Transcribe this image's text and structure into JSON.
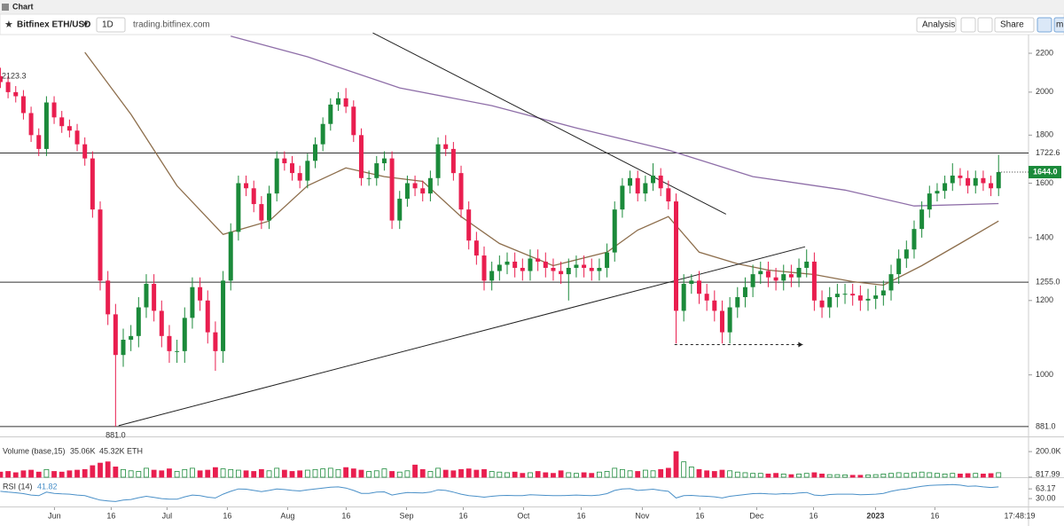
{
  "header": {
    "title": "Chart"
  },
  "toolbar": {
    "symbol": "Bitfinex ETH/USD",
    "interval": "1D",
    "source": "trading.bitfinex.com",
    "analysis": "Analysis",
    "share": "Share",
    "more": "m"
  },
  "time_label": "17:48:19",
  "chart_data": [
    {
      "type": "candlestick",
      "log": true,
      "up_color": "#1b8a3a",
      "down_color": "#e91e4f",
      "ylim": [
        860,
        2303
      ],
      "yticks": [
        1000,
        1200,
        1400,
        1600,
        1800,
        2000,
        2200
      ],
      "xlim": [
        -0.05,
        133.9
      ],
      "xticks": [
        {
          "value": 7.04,
          "label": "Jun"
        },
        {
          "value": 14.43,
          "label": "16"
        },
        {
          "value": 21.7,
          "label": "Jul"
        },
        {
          "value": 29.56,
          "label": "16"
        },
        {
          "value": 37.41,
          "label": "Aug"
        },
        {
          "value": 45.03,
          "label": "16"
        },
        {
          "value": 52.89,
          "label": "Sep"
        },
        {
          "value": 60.28,
          "label": "16"
        },
        {
          "value": 68.13,
          "label": "Oct"
        },
        {
          "value": 75.64,
          "label": "16"
        },
        {
          "value": 83.6,
          "label": "Nov"
        },
        {
          "value": 91.1,
          "label": "16"
        },
        {
          "value": 98.5,
          "label": "Dec"
        },
        {
          "value": 105.9,
          "label": "16"
        },
        {
          "value": 113.97,
          "label": "2023"
        },
        {
          "value": 121.7,
          "label": "16"
        }
      ],
      "open": [
        2080,
        2050,
        2000,
        1980,
        1900,
        1800,
        1740,
        1950,
        1880,
        1840,
        1820,
        1760,
        1700,
        1500,
        1260,
        1160,
        1050,
        1090,
        1100,
        1180,
        1250,
        1170,
        1100,
        1060,
        1060,
        1150,
        1240,
        1200,
        1110,
        1060,
        1260,
        1420,
        1600,
        1580,
        1520,
        1460,
        1560,
        1700,
        1680,
        1640,
        1610,
        1690,
        1760,
        1850,
        1940,
        1970,
        1930,
        1800,
        1620,
        1620,
        1680,
        1700,
        1460,
        1540,
        1600,
        1580,
        1560,
        1620,
        1760,
        1740,
        1640,
        1500,
        1390,
        1340,
        1260,
        1290,
        1310,
        1320,
        1300,
        1290,
        1330,
        1320,
        1300,
        1290,
        1280,
        1300,
        1310,
        1300,
        1290,
        1300,
        1350,
        1500,
        1590,
        1620,
        1560,
        1600,
        1630,
        1580,
        1530,
        1170,
        1250,
        1260,
        1220,
        1200,
        1170,
        1110,
        1180,
        1210,
        1240,
        1280,
        1290,
        1270,
        1260,
        1280,
        1270,
        1300,
        1320,
        1200,
        1180,
        1210,
        1220,
        1220,
        1215,
        1200,
        1205,
        1215,
        1230,
        1280,
        1330,
        1360,
        1430,
        1500,
        1560,
        1570,
        1600,
        1630,
        1620,
        1590,
        1620,
        1600,
        1580
      ],
      "high": [
        2123.3,
        2080,
        2030,
        2010,
        1930,
        1830,
        1980,
        1980,
        1910,
        1870,
        1850,
        1790,
        1730,
        1530,
        1290,
        1190,
        1120,
        1130,
        1210,
        1280,
        1280,
        1200,
        1130,
        1090,
        1180,
        1270,
        1270,
        1230,
        1140,
        1290,
        1450,
        1630,
        1630,
        1610,
        1550,
        1590,
        1730,
        1730,
        1710,
        1670,
        1720,
        1790,
        1880,
        1970,
        2000,
        2020,
        1960,
        1830,
        1650,
        1710,
        1730,
        1730,
        1570,
        1630,
        1630,
        1610,
        1650,
        1790,
        1800,
        1770,
        1670,
        1530,
        1420,
        1370,
        1320,
        1340,
        1350,
        1350,
        1330,
        1360,
        1360,
        1350,
        1330,
        1320,
        1330,
        1340,
        1340,
        1330,
        1330,
        1380,
        1530,
        1620,
        1650,
        1650,
        1630,
        1680,
        1660,
        1610,
        1560,
        1280,
        1280,
        1290,
        1250,
        1230,
        1200,
        1210,
        1240,
        1270,
        1310,
        1320,
        1320,
        1300,
        1310,
        1310,
        1330,
        1360,
        1350,
        1230,
        1240,
        1250,
        1250,
        1250,
        1245,
        1235,
        1245,
        1260,
        1310,
        1360,
        1390,
        1460,
        1530,
        1590,
        1600,
        1630,
        1680,
        1660,
        1650,
        1650,
        1650,
        1630,
        1715
      ],
      "low": [
        2020,
        1970,
        1950,
        1870,
        1770,
        1710,
        1710,
        1850,
        1810,
        1790,
        1730,
        1670,
        1470,
        1230,
        1130,
        881,
        1020,
        1060,
        1070,
        1150,
        1140,
        1070,
        1030,
        1030,
        1030,
        1120,
        1170,
        1080,
        1010,
        1030,
        1230,
        1390,
        1550,
        1490,
        1430,
        1430,
        1530,
        1650,
        1610,
        1580,
        1580,
        1660,
        1730,
        1820,
        1910,
        1900,
        1770,
        1590,
        1590,
        1590,
        1650,
        1430,
        1430,
        1510,
        1550,
        1530,
        1530,
        1590,
        1710,
        1610,
        1470,
        1360,
        1310,
        1230,
        1230,
        1260,
        1280,
        1270,
        1260,
        1260,
        1290,
        1270,
        1260,
        1250,
        1200,
        1270,
        1270,
        1260,
        1260,
        1270,
        1320,
        1470,
        1560,
        1530,
        1530,
        1570,
        1550,
        1500,
        1080,
        1140,
        1220,
        1190,
        1170,
        1140,
        1080,
        1080,
        1150,
        1180,
        1210,
        1250,
        1240,
        1230,
        1230,
        1240,
        1240,
        1270,
        1170,
        1150,
        1150,
        1180,
        1190,
        1185,
        1170,
        1170,
        1175,
        1185,
        1200,
        1250,
        1300,
        1330,
        1400,
        1470,
        1530,
        1540,
        1570,
        1590,
        1560,
        1560,
        1570,
        1550,
        1550
      ],
      "close": [
        2050,
        2000,
        1980,
        1900,
        1800,
        1740,
        1950,
        1880,
        1840,
        1820,
        1760,
        1700,
        1500,
        1260,
        1160,
        1050,
        1090,
        1100,
        1180,
        1250,
        1170,
        1100,
        1060,
        1060,
        1150,
        1240,
        1200,
        1110,
        1060,
        1260,
        1420,
        1600,
        1580,
        1520,
        1460,
        1560,
        1700,
        1680,
        1640,
        1610,
        1690,
        1760,
        1850,
        1940,
        1970,
        1930,
        1800,
        1620,
        1620,
        1680,
        1700,
        1460,
        1540,
        1600,
        1580,
        1560,
        1620,
        1760,
        1740,
        1640,
        1500,
        1390,
        1340,
        1260,
        1290,
        1310,
        1320,
        1300,
        1290,
        1330,
        1320,
        1300,
        1290,
        1280,
        1300,
        1310,
        1300,
        1290,
        1300,
        1350,
        1500,
        1590,
        1620,
        1560,
        1600,
        1630,
        1580,
        1530,
        1170,
        1250,
        1260,
        1220,
        1200,
        1170,
        1110,
        1180,
        1210,
        1240,
        1280,
        1290,
        1270,
        1260,
        1280,
        1270,
        1300,
        1320,
        1200,
        1180,
        1210,
        1220,
        1220,
        1215,
        1200,
        1205,
        1215,
        1230,
        1280,
        1330,
        1360,
        1430,
        1500,
        1560,
        1570,
        1600,
        1630,
        1620,
        1590,
        1620,
        1600,
        1580,
        1644
      ],
      "last_label": {
        "value": 1644,
        "label": "1644.0"
      },
      "last_color": "#1b8a3a",
      "high_label": 2123.3,
      "low_label": {
        "value": 881,
        "label": "881.0"
      },
      "levels": [
        1722.6,
        {
          "value": 1255,
          "label": "1255.0"
        },
        {
          "value": 881,
          "label": "881.0"
        }
      ],
      "overlays": [
        {
          "color": "#8d6e4c",
          "x": [
            11,
            17,
            23,
            29,
            35,
            40,
            45,
            50,
            55,
            60,
            65,
            72,
            79,
            83,
            87,
            91,
            96,
            100,
            106,
            111,
            115,
            120,
            125,
            130
          ],
          "values": [
            2205,
            1894,
            1590,
            1411,
            1458,
            1590,
            1661,
            1626,
            1607,
            1474,
            1380,
            1307,
            1351,
            1426,
            1474,
            1351,
            1313,
            1293,
            1279,
            1257,
            1246,
            1307,
            1380,
            1458
          ]
        },
        {
          "color": "#8e6ea8",
          "x": [
            30,
            40,
            52,
            64,
            75,
            87,
            98,
            110,
            119,
            130
          ],
          "values": [
            2294,
            2181,
            2021,
            1935,
            1832,
            1735,
            1626,
            1573,
            1513,
            1522
          ]
        }
      ],
      "trendlines": [
        {
          "x": [
            48.5,
            94.5
          ],
          "values": [
            2313,
            1483
          ]
        },
        {
          "x": [
            15.4,
            104.8
          ],
          "values": [
            883,
            1369
          ]
        },
        {
          "x": [
            87.8,
            104.5
          ],
          "values": [
            1077,
            1077
          ],
          "dashed": true,
          "arrow": true
        }
      ]
    },
    {
      "type": "bar",
      "title": "Volume (base,15)",
      "legend_values": [
        {
          "value": 35060,
          "label": "35.06K"
        },
        {
          "value": 45320,
          "label": "45.32K ETH"
        }
      ],
      "ylim": [
        0,
        270000
      ],
      "yticks": [
        {
          "value": 200000,
          "label": "200.0K"
        },
        817.99
      ],
      "values": [
        40000,
        45000,
        35000,
        50000,
        55000,
        40000,
        60000,
        45000,
        40000,
        50000,
        55000,
        60000,
        90000,
        110000,
        120000,
        80000,
        60000,
        50000,
        45000,
        70000,
        55000,
        50000,
        65000,
        45000,
        60000,
        70000,
        50000,
        55000,
        75000,
        65000,
        60000,
        55000,
        50000,
        45000,
        60000,
        50000,
        70000,
        55000,
        45000,
        50000,
        55000,
        60000,
        65000,
        70000,
        60000,
        75000,
        65000,
        55000,
        45000,
        50000,
        65000,
        45000,
        40000,
        50000,
        95000,
        60000,
        45000,
        70000,
        55000,
        50000,
        60000,
        65000,
        55000,
        60000,
        45000,
        40000,
        35000,
        40000,
        30000,
        35000,
        45000,
        35000,
        30000,
        50000,
        35000,
        30000,
        35000,
        30000,
        40000,
        45000,
        70000,
        60000,
        50000,
        45000,
        55000,
        50000,
        60000,
        70000,
        200000,
        120000,
        80000,
        60000,
        50000,
        45000,
        55000,
        50000,
        40000,
        35000,
        30000,
        30000,
        25000,
        30000,
        25000,
        20000,
        25000,
        30000,
        35000,
        25000,
        20000,
        20000,
        18000,
        15000,
        15000,
        18000,
        20000,
        25000,
        30000,
        35000,
        30000,
        35000,
        40000,
        35000,
        30000,
        25000,
        30000,
        25000,
        28000,
        30000,
        25000,
        28000,
        35000
      ]
    },
    {
      "type": "line",
      "title": "RSI (14)",
      "legend_value": 41.82,
      "color": "#4a90c8",
      "ylim": [
        0,
        100
      ],
      "yticks": [
        63.17,
        {
          "value": 30,
          "label": "30.00"
        }
      ],
      "values": [
        55,
        52,
        50,
        47,
        42,
        40,
        52,
        48,
        46,
        45,
        42,
        40,
        32,
        25,
        22,
        20,
        25,
        27,
        33,
        38,
        34,
        30,
        28,
        28,
        36,
        42,
        40,
        35,
        32,
        45,
        55,
        63,
        62,
        58,
        54,
        58,
        63,
        61,
        58,
        56,
        60,
        63,
        66,
        69,
        70,
        66,
        58,
        48,
        48,
        52,
        53,
        42,
        47,
        51,
        50,
        49,
        52,
        60,
        58,
        52,
        45,
        40,
        38,
        35,
        38,
        40,
        41,
        40,
        40,
        43,
        42,
        41,
        40,
        40,
        41,
        42,
        41,
        40,
        42,
        47,
        58,
        63,
        64,
        58,
        60,
        62,
        58,
        55,
        32,
        40,
        41,
        39,
        38,
        36,
        32,
        38,
        41,
        44,
        47,
        48,
        46,
        45,
        47,
        46,
        49,
        51,
        42,
        40,
        44,
        45,
        45,
        45,
        43,
        44,
        45,
        48,
        55,
        60,
        63,
        68,
        72,
        75,
        76,
        77,
        78,
        76,
        72,
        73,
        70,
        68,
        70
      ]
    }
  ]
}
